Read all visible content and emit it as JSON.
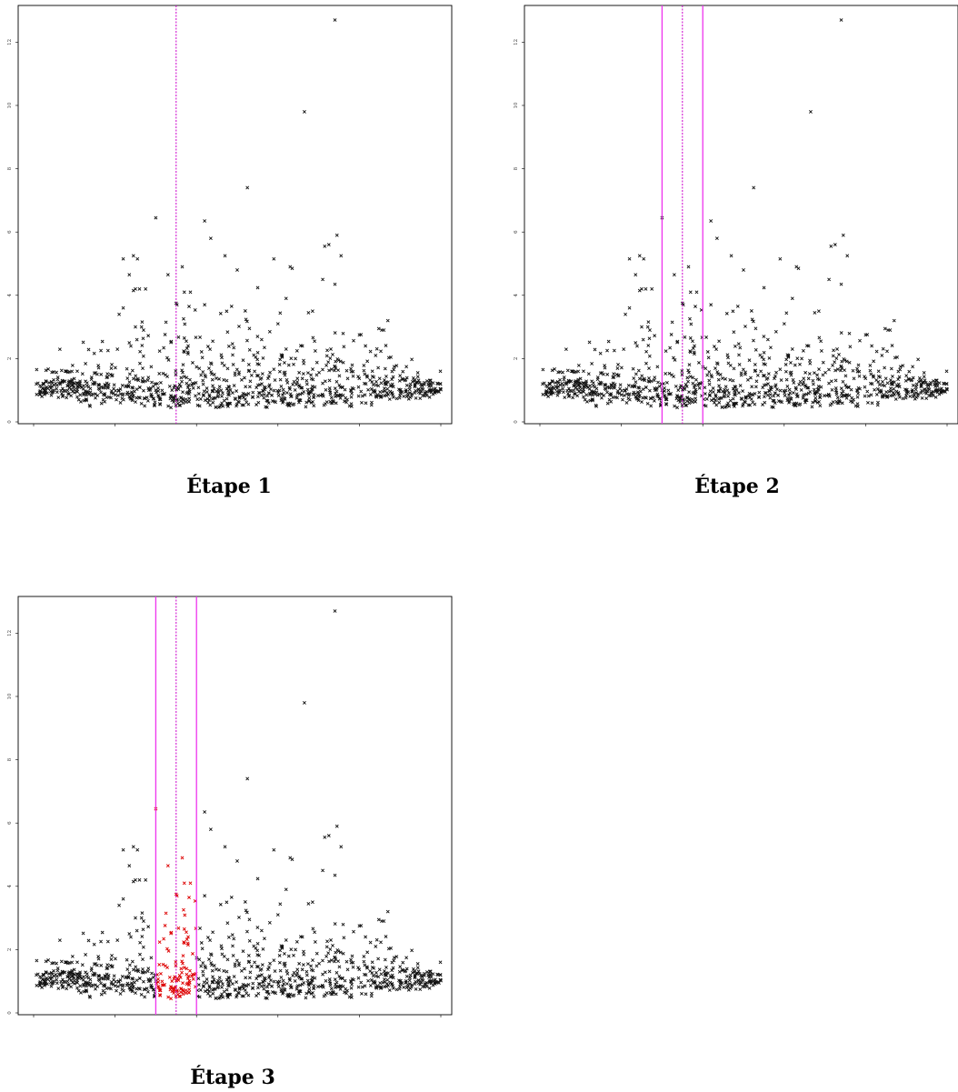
{
  "captions": [
    "Étape 1",
    "Étape 2",
    "Étape 3"
  ],
  "colors": {
    "points": "#111111",
    "highlight": "#dd0000",
    "center_line": "#cc00cc",
    "bound_line": "#ee33ee",
    "axis": "#000000"
  },
  "chart_data": [
    {
      "type": "scatter",
      "title": "",
      "xlabel": "",
      "ylabel": "",
      "xlim": [
        0,
        1
      ],
      "ylim": [
        0,
        13
      ],
      "xticks": [
        "0.0",
        "0.2",
        "0.4",
        "0.6",
        "0.8",
        "1.0"
      ],
      "yticks": [
        "0",
        "2",
        "4",
        "6",
        "8",
        "10",
        "12"
      ],
      "center_line": 0.35,
      "bounds": [],
      "highlight_window": false
    },
    {
      "type": "scatter",
      "title": "",
      "xlabel": "",
      "ylabel": "",
      "xlim": [
        0,
        1
      ],
      "ylim": [
        0,
        13
      ],
      "xticks": [
        "0.0",
        "0.2",
        "0.4",
        "0.6",
        "0.8",
        "1.0"
      ],
      "yticks": [
        "0",
        "2",
        "4",
        "6",
        "8",
        "10",
        "12"
      ],
      "center_line": 0.35,
      "bounds": [
        0.3,
        0.4
      ],
      "highlight_window": false
    },
    {
      "type": "scatter",
      "title": "",
      "xlabel": "",
      "ylabel": "",
      "xlim": [
        0,
        1
      ],
      "ylim": [
        0,
        13
      ],
      "xticks": [
        "0.0",
        "0.2",
        "0.4",
        "0.6",
        "0.8",
        "1.0"
      ],
      "yticks": [
        "0",
        "2",
        "4",
        "6",
        "8",
        "10",
        "12"
      ],
      "center_line": 0.35,
      "bounds": [
        0.3,
        0.4
      ],
      "highlight_window": true
    }
  ],
  "points": {
    "notable": [
      [
        0.74,
        12.7
      ],
      [
        0.665,
        9.8
      ],
      [
        0.525,
        7.4
      ],
      [
        0.3,
        6.45
      ],
      [
        0.42,
        6.35
      ],
      [
        0.435,
        5.8
      ],
      [
        0.745,
        5.9
      ],
      [
        0.715,
        5.55
      ],
      [
        0.725,
        5.6
      ],
      [
        0.755,
        5.25
      ],
      [
        0.47,
        5.25
      ],
      [
        0.22,
        5.15
      ],
      [
        0.245,
        5.25
      ],
      [
        0.255,
        5.15
      ],
      [
        0.59,
        5.15
      ],
      [
        0.63,
        4.9
      ],
      [
        0.635,
        4.85
      ],
      [
        0.5,
        4.8
      ],
      [
        0.235,
        4.65
      ],
      [
        0.33,
        4.65
      ],
      [
        0.365,
        4.9
      ],
      [
        0.71,
        4.5
      ],
      [
        0.74,
        4.35
      ],
      [
        0.25,
        4.2
      ],
      [
        0.26,
        4.2
      ],
      [
        0.245,
        4.15
      ],
      [
        0.275,
        4.2
      ],
      [
        0.37,
        4.1
      ],
      [
        0.385,
        4.1
      ],
      [
        0.62,
        3.9
      ],
      [
        0.35,
        3.75
      ],
      [
        0.352,
        3.7
      ],
      [
        0.42,
        3.7
      ],
      [
        0.675,
        3.45
      ],
      [
        0.685,
        3.5
      ],
      [
        0.21,
        3.4
      ],
      [
        0.87,
        3.2
      ],
      [
        0.855,
        2.9
      ],
      [
        0.86,
        2.9
      ],
      [
        0.325,
        3.15
      ],
      [
        0.6,
        3.1
      ],
      [
        0.58,
        2.85
      ],
      [
        0.55,
        2.7
      ],
      [
        0.25,
        3.0
      ],
      [
        0.265,
        3.0
      ],
      [
        0.27,
        2.9
      ],
      [
        0.22,
        3.6
      ],
      [
        0.235,
        2.5
      ],
      [
        0.37,
        2.65
      ],
      [
        0.375,
        2.55
      ],
      [
        0.44,
        2.55
      ],
      [
        0.53,
        2.95
      ],
      [
        0.56,
        2.6
      ],
      [
        0.62,
        2.3
      ],
      [
        0.66,
        2.4
      ],
      [
        0.69,
        2.55
      ],
      [
        0.73,
        2.3
      ],
      [
        0.8,
        2.75
      ],
      [
        0.815,
        2.4
      ],
      [
        0.84,
        2.1
      ]
    ],
    "bulk_count": 1000,
    "seed": 7
  }
}
